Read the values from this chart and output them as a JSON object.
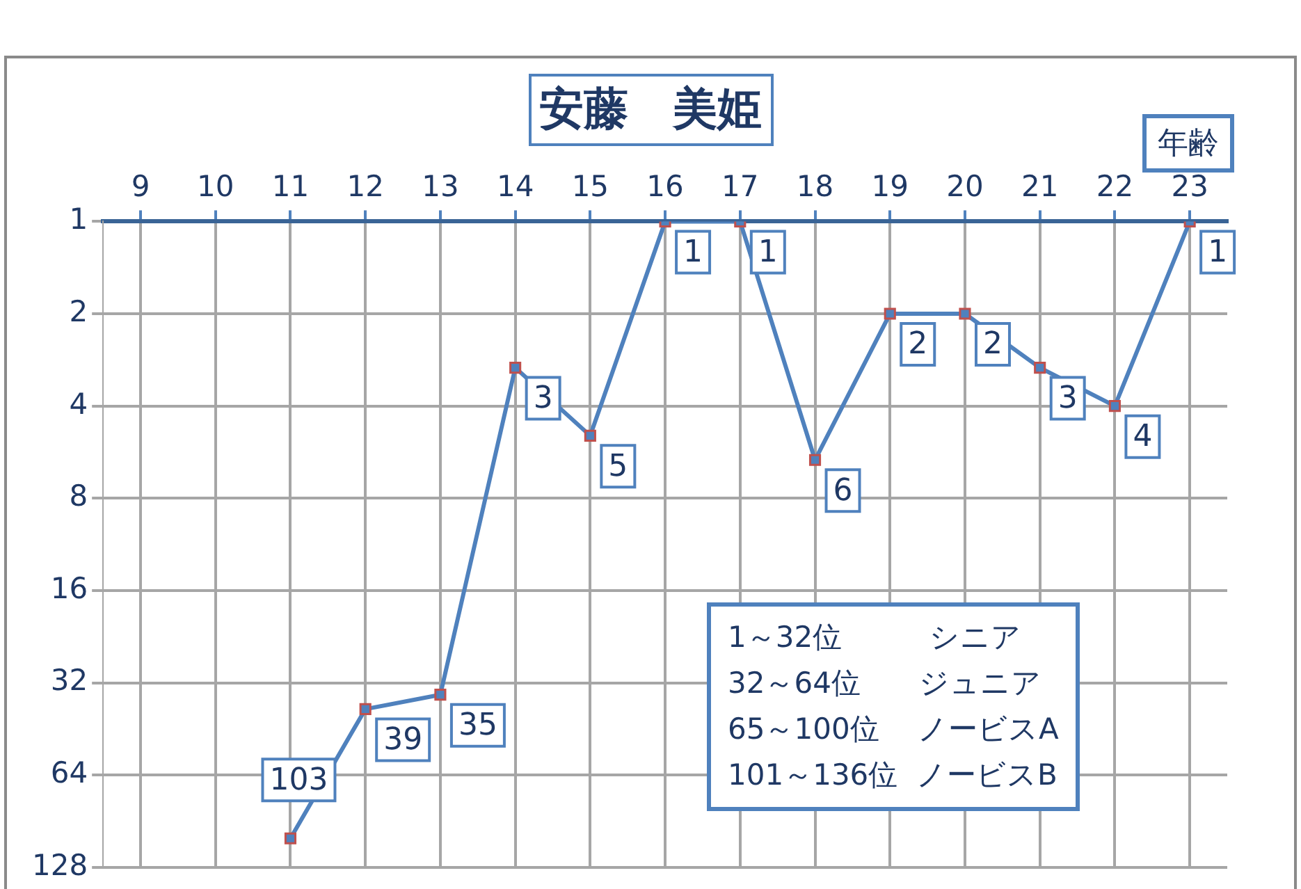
{
  "chart_data": {
    "type": "line",
    "title": "安藤　美姫",
    "xlabel": "年齢",
    "x": [
      11,
      12,
      13,
      14,
      15,
      16,
      17,
      18,
      19,
      20,
      21,
      22,
      23
    ],
    "series": [
      {
        "color": "#4f81bd",
        "values": [
          103,
          39,
          35,
          3,
          5,
          1,
          1,
          6,
          2,
          2,
          3,
          4,
          1
        ]
      }
    ],
    "xlim": [
      8.5,
      23.5
    ],
    "xticks": [
      9,
      10,
      11,
      12,
      13,
      14,
      15,
      16,
      17,
      18,
      19,
      20,
      21,
      22,
      23
    ],
    "ylim": [
      128,
      1
    ],
    "yticks": [
      1,
      2,
      4,
      8,
      16,
      32,
      64,
      128
    ],
    "log": true,
    "grid": true,
    "legend": false,
    "marker": "square",
    "line_style": "solid",
    "data_labels": true,
    "annotations": [
      "1～32位　　　シニア",
      "32～64位　　ジュニア",
      "65～100位　 ノービスA",
      "101～136位  ノービスB"
    ]
  }
}
